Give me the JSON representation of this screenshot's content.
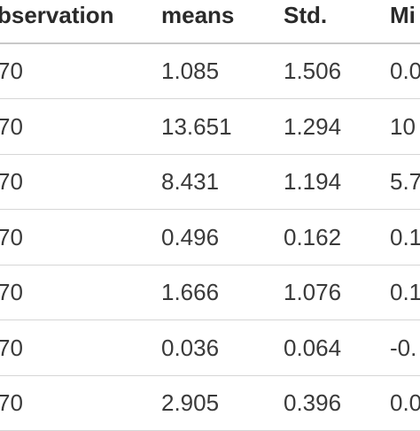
{
  "table": {
    "header": [
      "bservation",
      "means",
      "Std.",
      "Mi"
    ],
    "rows": [
      [
        "70",
        "1.085",
        "1.506",
        "0.0"
      ],
      [
        "70",
        "13.651",
        "1.294",
        "10"
      ],
      [
        "70",
        "8.431",
        "1.194",
        "5.7"
      ],
      [
        "70",
        "0.496",
        "0.162",
        "0.1"
      ],
      [
        "70",
        "1.666",
        "1.076",
        "0.1"
      ],
      [
        "70",
        "0.036",
        "0.064",
        "-0."
      ],
      [
        "70",
        "2.905",
        "0.396",
        "0.0"
      ]
    ]
  }
}
